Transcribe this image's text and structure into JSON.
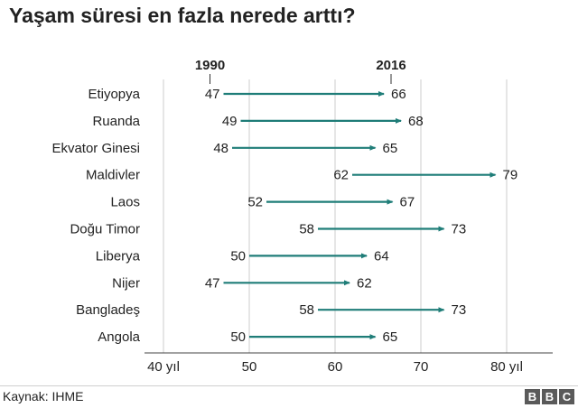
{
  "title": "Yaşam süresi en fazla nerede arttı?",
  "source": "Kaynak: IHME",
  "logo": [
    "B",
    "B",
    "C"
  ],
  "colors": {
    "arrow": "#1f7d78",
    "grid": "#cccccc",
    "text": "#222222"
  },
  "chart_data": {
    "type": "dumbbell-arrow",
    "start_label": "1990",
    "end_label": "2016",
    "categories": [
      "Etiyopya",
      "Ruanda",
      "Ekvator Ginesi",
      "Maldivler",
      "Laos",
      "Doğu Timor",
      "Liberya",
      "Nijer",
      "Bangladeş",
      "Angola"
    ],
    "series": [
      {
        "name": "1990",
        "values": [
          47,
          49,
          48,
          62,
          52,
          58,
          50,
          47,
          58,
          50
        ]
      },
      {
        "name": "2016",
        "values": [
          66,
          68,
          65,
          79,
          67,
          73,
          64,
          62,
          73,
          65
        ]
      }
    ],
    "xlim": [
      40,
      80
    ],
    "xticks": [
      40,
      50,
      60,
      70,
      80
    ],
    "xtick_labels": [
      "40 yıl",
      "50",
      "60",
      "70",
      "80 yıl"
    ],
    "grid": "vertical"
  }
}
